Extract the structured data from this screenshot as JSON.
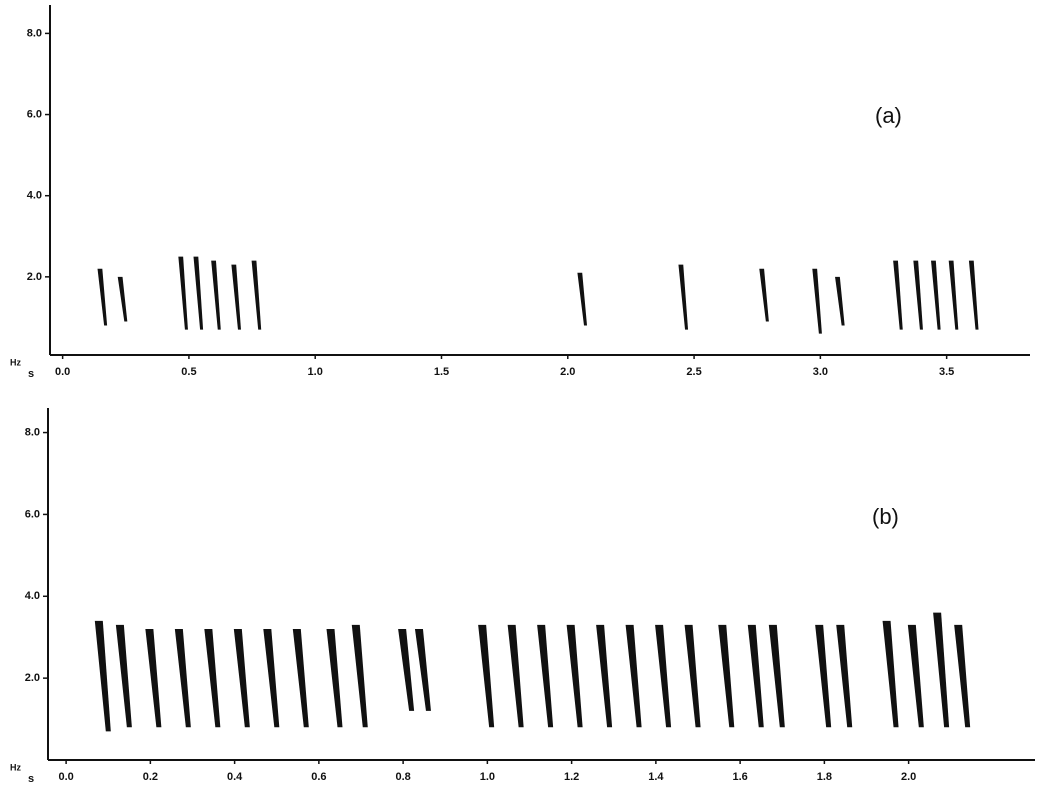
{
  "chart_data": [
    {
      "type": "spectrogram",
      "label": "(a)",
      "y_unit": "Hz",
      "x_unit": "s",
      "xlim": [
        -0.05,
        3.83
      ],
      "ylim": [
        0,
        8.7
      ],
      "xticks": [
        {
          "value": 0,
          "label": "0.0"
        },
        {
          "value": 0.5,
          "label": "0.5"
        },
        {
          "value": 1,
          "label": "1.0"
        },
        {
          "value": 1.5,
          "label": "1.5"
        },
        {
          "value": 2,
          "label": "2.0"
        },
        {
          "value": 2.5,
          "label": "2.5"
        },
        {
          "value": 3,
          "label": "3.0"
        },
        {
          "value": 3.5,
          "label": "3.5"
        }
      ],
      "yticks": [
        {
          "value": 2,
          "label": "2.0"
        },
        {
          "value": 4,
          "label": "4.0"
        },
        {
          "value": 6,
          "label": "6.0"
        },
        {
          "value": 8,
          "label": "8.0"
        }
      ],
      "syllables": [
        {
          "t": 0.15,
          "low": 0.8,
          "high": 2.2
        },
        {
          "t": 0.23,
          "low": 0.9,
          "high": 2.0
        },
        {
          "t": 0.47,
          "low": 0.7,
          "high": 2.5
        },
        {
          "t": 0.53,
          "low": 0.7,
          "high": 2.5
        },
        {
          "t": 0.6,
          "low": 0.7,
          "high": 2.4
        },
        {
          "t": 0.68,
          "low": 0.7,
          "high": 2.3
        },
        {
          "t": 0.76,
          "low": 0.7,
          "high": 2.4
        },
        {
          "t": 2.05,
          "low": 0.8,
          "high": 2.1
        },
        {
          "t": 2.45,
          "low": 0.7,
          "high": 2.3
        },
        {
          "t": 2.77,
          "low": 0.9,
          "high": 2.2
        },
        {
          "t": 2.98,
          "low": 0.6,
          "high": 2.2
        },
        {
          "t": 3.07,
          "low": 0.8,
          "high": 2.0
        },
        {
          "t": 3.3,
          "low": 0.7,
          "high": 2.4
        },
        {
          "t": 3.38,
          "low": 0.7,
          "high": 2.4
        },
        {
          "t": 3.45,
          "low": 0.7,
          "high": 2.4
        },
        {
          "t": 3.52,
          "low": 0.7,
          "high": 2.4
        },
        {
          "t": 3.6,
          "low": 0.7,
          "high": 2.4
        }
      ]
    },
    {
      "type": "spectrogram",
      "label": "(b)",
      "y_unit": "Hz",
      "x_unit": "s",
      "xlim": [
        -0.043,
        2.3
      ],
      "ylim": [
        0,
        8.6
      ],
      "xticks": [
        {
          "value": 0,
          "label": "0.0"
        },
        {
          "value": 0.2,
          "label": "0.2"
        },
        {
          "value": 0.4,
          "label": "0.4"
        },
        {
          "value": 0.6,
          "label": "0.6"
        },
        {
          "value": 0.8,
          "label": "0.8"
        },
        {
          "value": 1,
          "label": "1.0"
        },
        {
          "value": 1.2,
          "label": "1.2"
        },
        {
          "value": 1.4,
          "label": "1.4"
        },
        {
          "value": 1.6,
          "label": "1.6"
        },
        {
          "value": 1.8,
          "label": "1.8"
        },
        {
          "value": 2,
          "label": "2.0"
        }
      ],
      "yticks": [
        {
          "value": 2,
          "label": "2.0"
        },
        {
          "value": 4,
          "label": "4.0"
        },
        {
          "value": 6,
          "label": "6.0"
        },
        {
          "value": 8,
          "label": "8.0"
        }
      ],
      "syllables": [
        {
          "t": 0.08,
          "low": 0.7,
          "high": 3.4
        },
        {
          "t": 0.13,
          "low": 0.8,
          "high": 3.3
        },
        {
          "t": 0.2,
          "low": 0.8,
          "high": 3.2
        },
        {
          "t": 0.27,
          "low": 0.8,
          "high": 3.2
        },
        {
          "t": 0.34,
          "low": 0.8,
          "high": 3.2
        },
        {
          "t": 0.41,
          "low": 0.8,
          "high": 3.2
        },
        {
          "t": 0.48,
          "low": 0.8,
          "high": 3.2
        },
        {
          "t": 0.55,
          "low": 0.8,
          "high": 3.2
        },
        {
          "t": 0.63,
          "low": 0.8,
          "high": 3.2
        },
        {
          "t": 0.69,
          "low": 0.8,
          "high": 3.3
        },
        {
          "t": 0.8,
          "low": 1.2,
          "high": 3.2
        },
        {
          "t": 0.84,
          "low": 1.2,
          "high": 3.2
        },
        {
          "t": 0.99,
          "low": 0.8,
          "high": 3.3
        },
        {
          "t": 1.06,
          "low": 0.8,
          "high": 3.3
        },
        {
          "t": 1.13,
          "low": 0.8,
          "high": 3.3
        },
        {
          "t": 1.2,
          "low": 0.8,
          "high": 3.3
        },
        {
          "t": 1.27,
          "low": 0.8,
          "high": 3.3
        },
        {
          "t": 1.34,
          "low": 0.8,
          "high": 3.3
        },
        {
          "t": 1.41,
          "low": 0.8,
          "high": 3.3
        },
        {
          "t": 1.48,
          "low": 0.8,
          "high": 3.3
        },
        {
          "t": 1.56,
          "low": 0.8,
          "high": 3.3
        },
        {
          "t": 1.63,
          "low": 0.8,
          "high": 3.3
        },
        {
          "t": 1.68,
          "low": 0.8,
          "high": 3.3
        },
        {
          "t": 1.79,
          "low": 0.8,
          "high": 3.3
        },
        {
          "t": 1.84,
          "low": 0.8,
          "high": 3.3
        },
        {
          "t": 1.95,
          "low": 0.8,
          "high": 3.4
        },
        {
          "t": 2.01,
          "low": 0.8,
          "high": 3.3
        },
        {
          "t": 2.07,
          "low": 0.8,
          "high": 3.6
        },
        {
          "t": 2.12,
          "low": 0.8,
          "high": 3.3
        }
      ]
    }
  ]
}
